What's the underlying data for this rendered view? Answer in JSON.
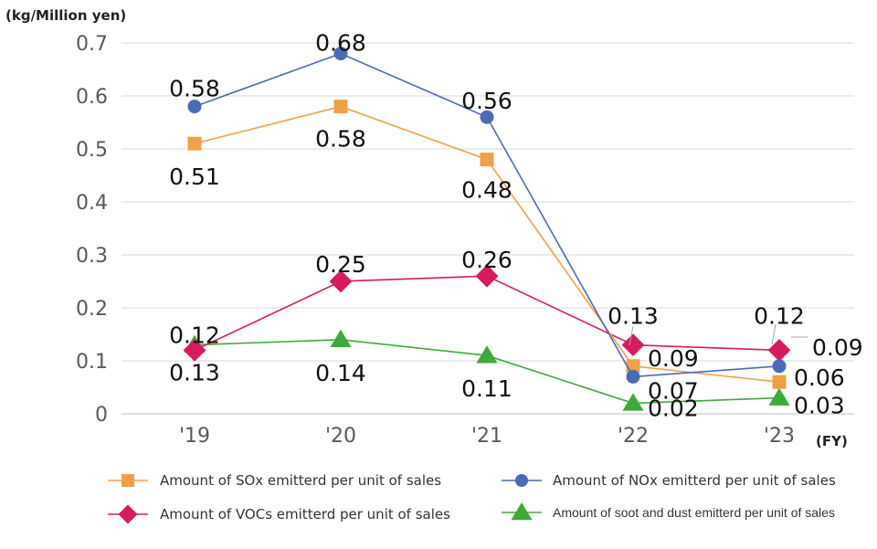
{
  "chart_data": {
    "type": "line",
    "unit_label": "(kg/Million yen)",
    "x_axis_suffix": "(FY)",
    "categories": [
      "'19",
      "'20",
      "'21",
      "'22",
      "'23"
    ],
    "ylim": [
      0,
      0.7
    ],
    "y_ticks": [
      {
        "value": 0,
        "label": "0"
      },
      {
        "value": 0.1,
        "label": "0.1"
      },
      {
        "value": 0.2,
        "label": "0.2"
      },
      {
        "value": 0.3,
        "label": "0.3"
      },
      {
        "value": 0.4,
        "label": "0.4"
      },
      {
        "value": 0.5,
        "label": "0.5"
      },
      {
        "value": 0.6,
        "label": "0.6"
      },
      {
        "value": 0.7,
        "label": "0.7"
      }
    ],
    "grid": true,
    "series": [
      {
        "key": "sox",
        "name": "Amount of SOx emitterd per unit of sales",
        "color": "#F0A048",
        "marker": "square",
        "values": [
          0.51,
          0.58,
          0.48,
          0.09,
          0.06
        ],
        "labels": [
          "0.51",
          "0.58",
          "0.48",
          "0.09",
          "0.06"
        ]
      },
      {
        "key": "nox",
        "name": "Amount of NOx emitterd per unit of sales",
        "color": "#4A6BB5",
        "marker": "circle",
        "values": [
          0.58,
          0.68,
          0.56,
          0.07,
          0.09
        ],
        "labels": [
          "0.58",
          "0.68",
          "0.56",
          "0.07",
          "0.09"
        ]
      },
      {
        "key": "voc",
        "name": "Amount of VOCs emitterd per unit of sales",
        "color": "#D81B60",
        "marker": "diamond",
        "values": [
          0.12,
          0.25,
          0.26,
          0.13,
          0.12
        ],
        "labels": [
          "0.12",
          "0.25",
          "0.26",
          "0.13",
          "0.12"
        ]
      },
      {
        "key": "dust",
        "name": "Amount of soot and dust emitterd per unit of sales",
        "color": "#3DAA3A",
        "marker": "triangle",
        "values": [
          0.13,
          0.14,
          0.11,
          0.02,
          0.03
        ],
        "labels": [
          "0.13",
          "0.14",
          "0.11",
          "0.02",
          "0.03"
        ]
      }
    ]
  }
}
